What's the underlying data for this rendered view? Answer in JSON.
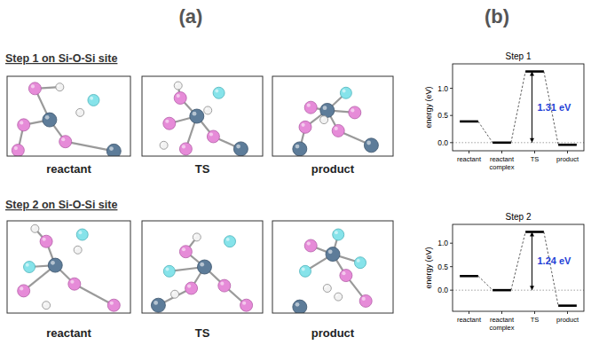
{
  "chart_data": [
    {
      "type": "energy_levels",
      "title": "Step 1",
      "y_label": "energy (eV)",
      "categories": [
        "reactant",
        "reactant complex",
        "TS",
        "product"
      ],
      "values": [
        0.39,
        0,
        1.31,
        -0.04
      ],
      "color": "#000000",
      "ylim": [
        -0.15,
        1.45
      ],
      "yticks": [
        {
          "value": 0,
          "label": "0.0"
        },
        {
          "value": 0.5,
          "label": "0.5"
        },
        {
          "value": 1,
          "label": "1.0"
        }
      ],
      "reference_line": 0,
      "annotations": [
        {
          "text": "1.31 eV",
          "values": [
            0,
            1.31
          ],
          "color": "#1f3fd6"
        }
      ]
    },
    {
      "type": "energy_levels",
      "title": "Step 2",
      "y_label": "energy (eV)",
      "categories": [
        "reactant",
        "reactant complex",
        "TS",
        "product"
      ],
      "values": [
        0.3,
        0,
        1.24,
        -0.33
      ],
      "color": "#000000",
      "ylim": [
        -0.45,
        1.4
      ],
      "yticks": [
        {
          "value": 0,
          "label": "0.0"
        },
        {
          "value": 0.5,
          "label": "0.5"
        },
        {
          "value": 1,
          "label": "1.0"
        }
      ],
      "reference_line": 0,
      "annotations": [
        {
          "text": "1.24 eV",
          "values": [
            0,
            1.24
          ],
          "color": "#1f3fd6"
        }
      ]
    }
  ],
  "figure": {
    "panel_labels": [
      "(a)",
      "(b)"
    ],
    "rows": [
      {
        "title": "Step 1 on Si-O-Si site",
        "images": [
          "reactant",
          "TS",
          "product"
        ]
      },
      {
        "title": "Step 2 on Si-O-Si site",
        "images": [
          "reactant",
          "TS",
          "product"
        ]
      }
    ]
  }
}
